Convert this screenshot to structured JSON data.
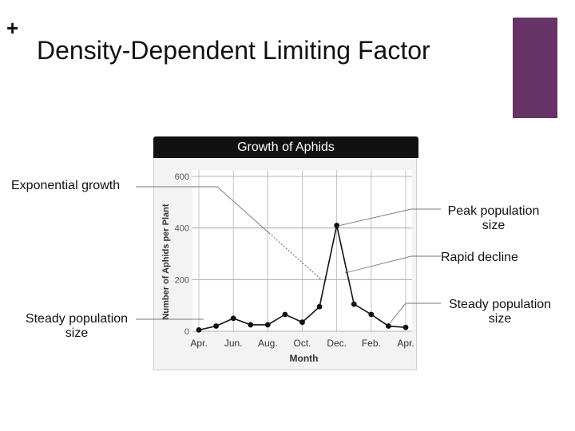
{
  "slide": {
    "plus_glyph": "+",
    "title": "Density-Dependent Limiting Factor",
    "accent_color": "#663366"
  },
  "chart_data": {
    "type": "line",
    "title": "Growth of Aphids",
    "xlabel": "Month",
    "ylabel": "Number of Aphids per Plant",
    "ylim": [
      0,
      600
    ],
    "yticks": [
      0,
      200,
      400,
      600
    ],
    "x_tick_labels": [
      "Apr.",
      "Jun.",
      "Aug.",
      "Oct.",
      "Dec.",
      "Feb.",
      "Apr."
    ],
    "x": [
      0,
      1,
      2,
      3,
      4,
      5,
      6,
      7,
      8,
      9,
      10,
      11,
      12
    ],
    "series": [
      {
        "values": [
          5,
          20,
          50,
          25,
          25,
          65,
          35,
          95,
          410,
          105,
          65,
          20,
          15
        ]
      }
    ],
    "grid": true,
    "annotations": [
      {
        "id": "exponential",
        "lines": [
          "Exponential growth"
        ]
      },
      {
        "id": "peak",
        "lines": [
          "Peak population",
          "size"
        ]
      },
      {
        "id": "decline",
        "lines": [
          "Rapid decline"
        ]
      },
      {
        "id": "steady-left",
        "lines": [
          "Steady population",
          "size"
        ]
      },
      {
        "id": "steady-right",
        "lines": [
          "Steady population",
          "size"
        ]
      }
    ]
  }
}
